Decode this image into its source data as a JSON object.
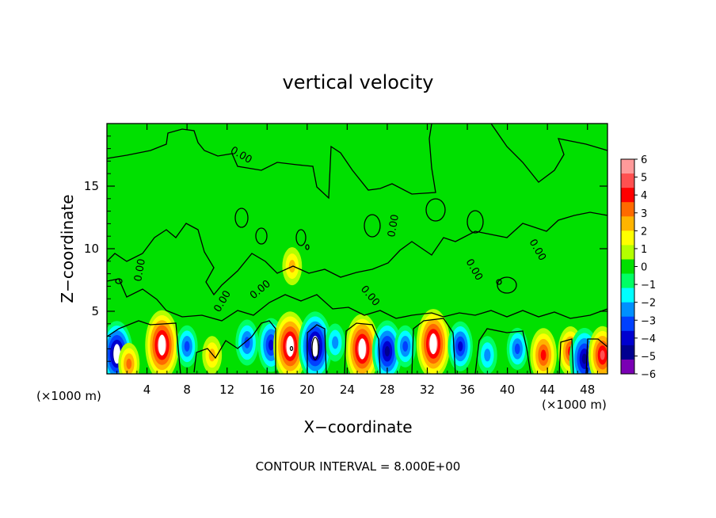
{
  "chart_data": {
    "type": "heatmap",
    "title": "vertical velocity",
    "xlabel": "X−coordinate",
    "ylabel": "Z−coordinate",
    "x_unit_label": "(×1000 m)",
    "y_unit_label": "(×1000 m)",
    "xlim": [
      0,
      50
    ],
    "ylim": [
      0,
      20
    ],
    "x_ticks": [
      4,
      8,
      12,
      16,
      20,
      24,
      28,
      32,
      36,
      40,
      44,
      48
    ],
    "y_ticks": [
      5,
      10,
      15
    ],
    "footer": "CONTOUR INTERVAL = 8.000E+00",
    "contour_label": "0.00",
    "colorbar": {
      "min": -6,
      "max": 6,
      "tick_labels": [
        "6",
        "5",
        "4",
        "3",
        "2",
        "1",
        "0",
        "−1",
        "−2",
        "−3",
        "−4",
        "−5",
        "−6"
      ],
      "colors": [
        "#ff9a9a",
        "#ff5050",
        "#ff0000",
        "#ff6a00",
        "#ffb400",
        "#ffff00",
        "#b4ff00",
        "#00e000",
        "#00ff64",
        "#00ffff",
        "#0090ff",
        "#0040ff",
        "#0000d0",
        "#000090",
        "#7a00b4"
      ]
    },
    "updraft_cores": [
      {
        "x": 1,
        "z": 1.6,
        "w": -5.5
      },
      {
        "x": 2.2,
        "z": 0.8,
        "w": 2.5
      },
      {
        "x": 5.5,
        "z": 2.3,
        "w": 6
      },
      {
        "x": 8,
        "z": 2.2,
        "w": -2.5
      },
      {
        "x": 10.5,
        "z": 1.5,
        "w": 2
      },
      {
        "x": 14,
        "z": 2.5,
        "w": -3
      },
      {
        "x": 16.4,
        "z": 2.3,
        "w": -4
      },
      {
        "x": 18.3,
        "z": 2.2,
        "w": 6
      },
      {
        "x": 20.8,
        "z": 2.2,
        "w": -6
      },
      {
        "x": 22.8,
        "z": 2.5,
        "w": -2
      },
      {
        "x": 25.5,
        "z": 2.0,
        "w": 6
      },
      {
        "x": 28,
        "z": 1.8,
        "w": -5
      },
      {
        "x": 29.8,
        "z": 2.2,
        "w": -2.5
      },
      {
        "x": 32.6,
        "z": 2.4,
        "w": 6
      },
      {
        "x": 35.3,
        "z": 2.2,
        "w": -3.5
      },
      {
        "x": 38,
        "z": 1.5,
        "w": -2
      },
      {
        "x": 41,
        "z": 2.0,
        "w": -2.5
      },
      {
        "x": 43.6,
        "z": 1.5,
        "w": 4
      },
      {
        "x": 46.3,
        "z": 1.8,
        "w": 3.5
      },
      {
        "x": 47.7,
        "z": 1.2,
        "w": -5
      },
      {
        "x": 49.5,
        "z": 1.5,
        "w": 4.5
      },
      {
        "x": 18.5,
        "z": 8.6,
        "w": 2
      }
    ]
  }
}
